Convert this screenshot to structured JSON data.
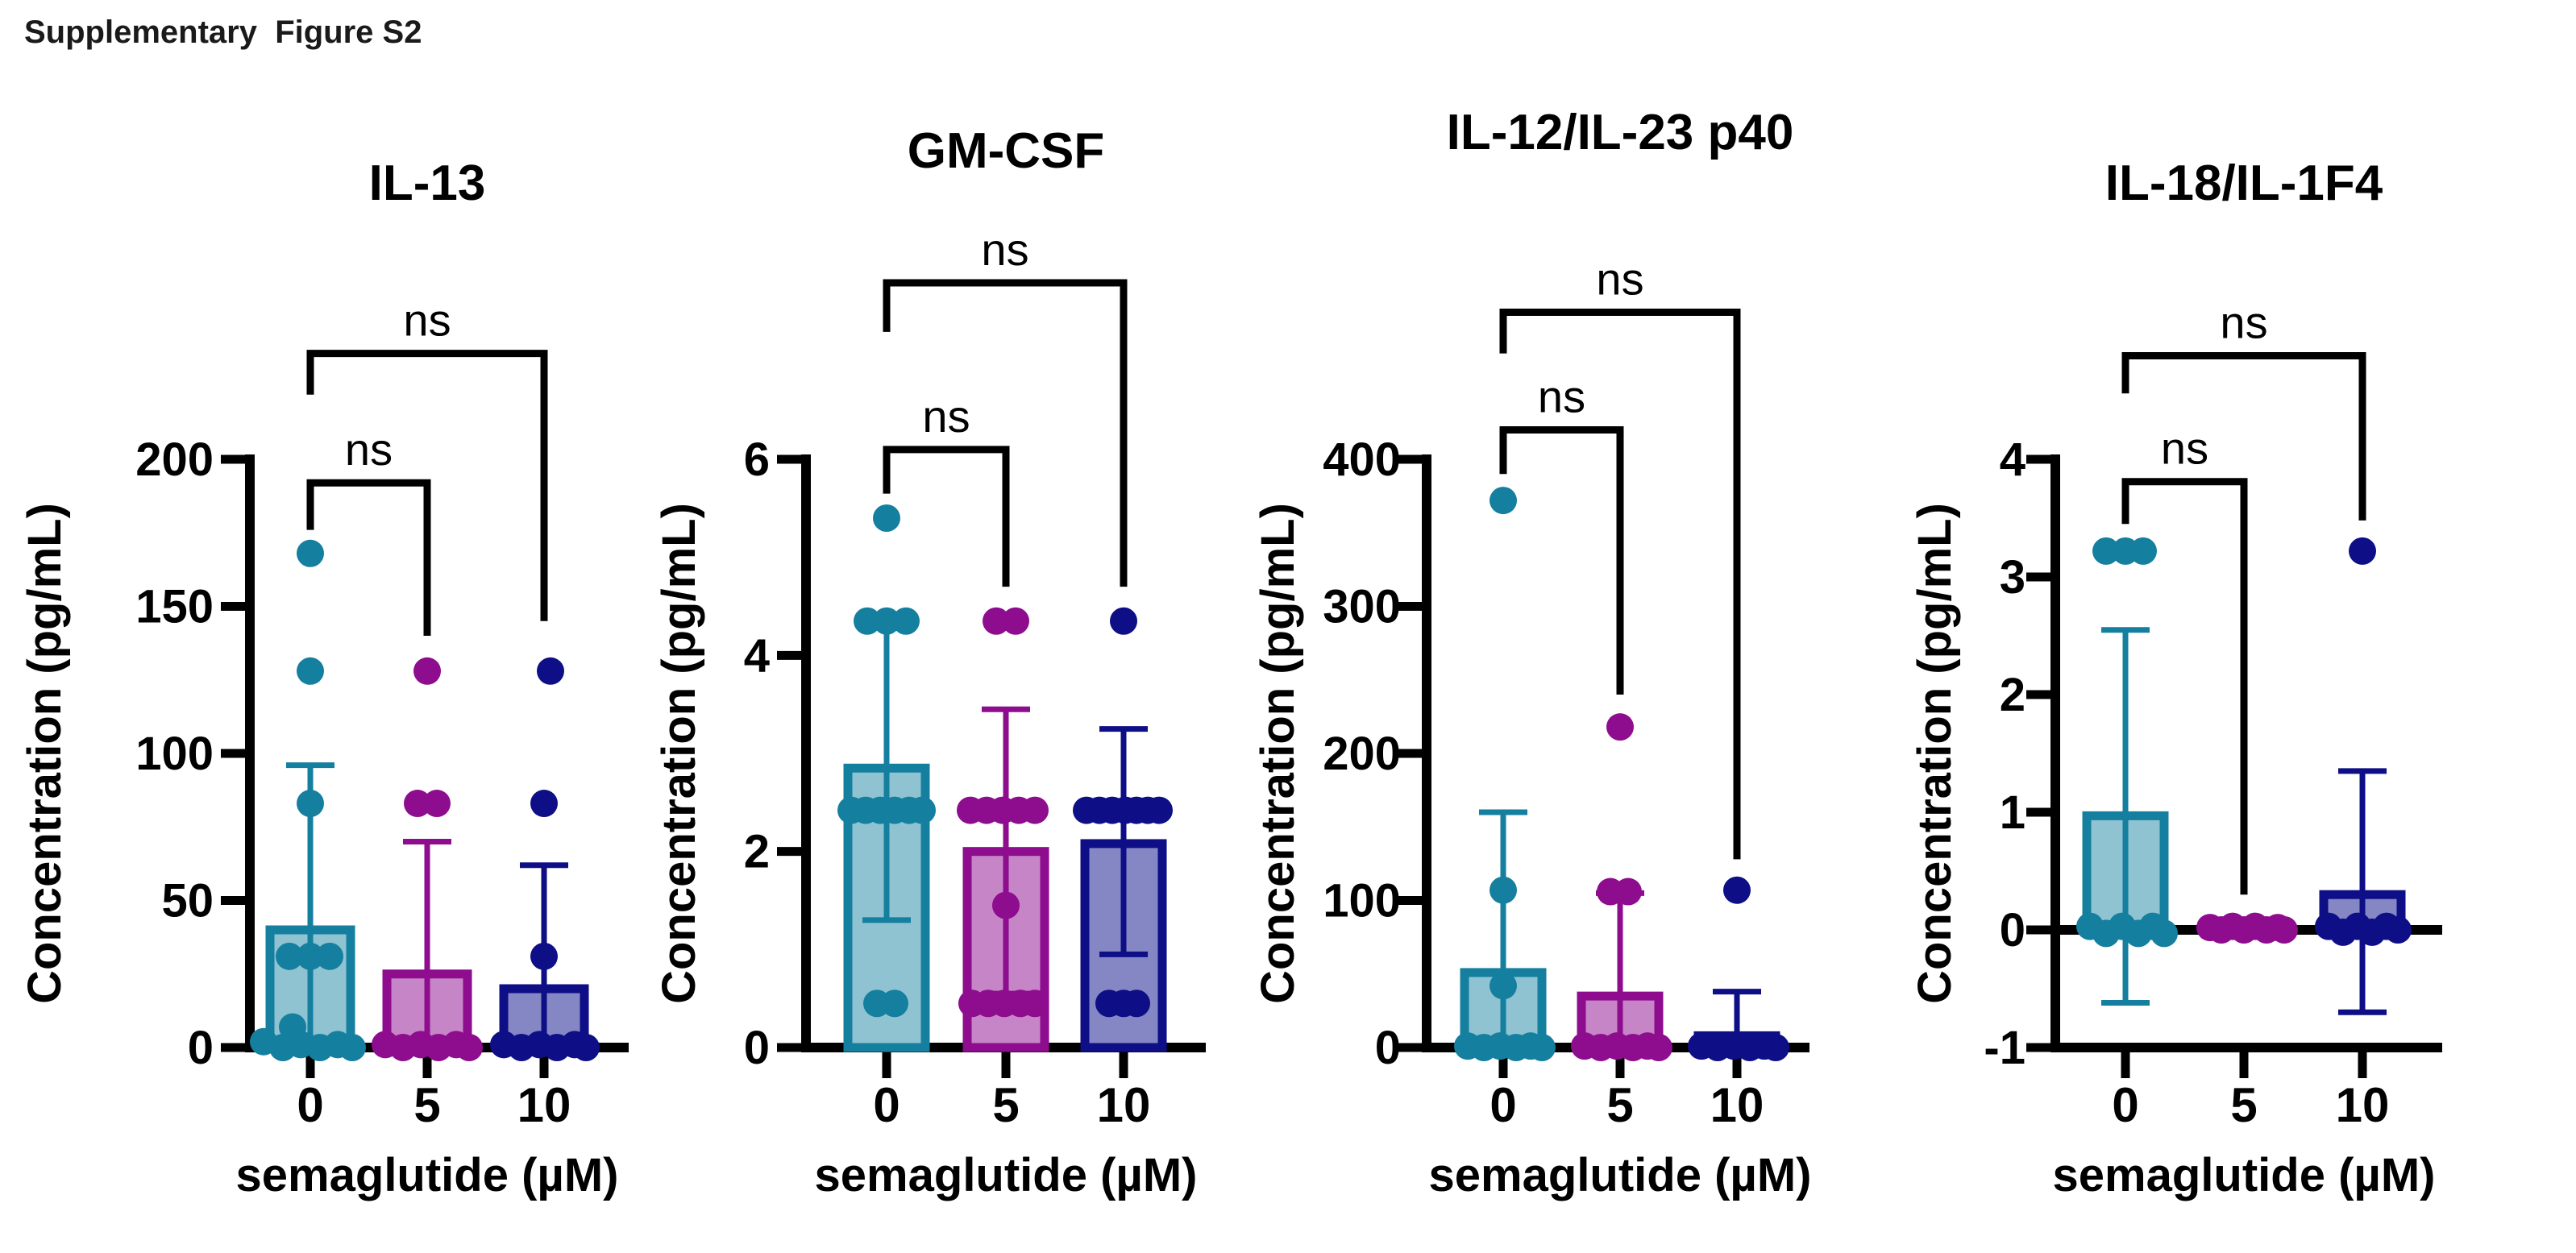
{
  "figure_label": "Supplementary  Figure S2",
  "sig_label": "ns",
  "axes": {
    "x_label": "semaglutide (µM)",
    "y_label": "Concentration (pg/mL)",
    "categories": [
      "0",
      "5",
      "10"
    ]
  },
  "colors": {
    "teal": {
      "stroke": "#147F9E",
      "fill": "#8FC3D1"
    },
    "magenta": {
      "stroke": "#8E0C8E",
      "fill": "#C685C6"
    },
    "navy": {
      "stroke": "#0E0E87",
      "fill": "#8487C3"
    }
  },
  "chart_data": [
    {
      "type": "bar",
      "title": "IL-13",
      "xlabel": "semaglutide (µM)",
      "ylabel": "Concentration (pg/mL)",
      "ylim": [
        0,
        200
      ],
      "yticks": [
        0,
        50,
        100,
        150,
        200
      ],
      "categories": [
        "0",
        "5",
        "10"
      ],
      "groups": [
        {
          "category": "0",
          "color": "teal",
          "bar": 40,
          "err": {
            "lo": 0,
            "hi": 96,
            "cap_lo": false,
            "cap_hi": true
          },
          "points": [
            [
              168,
              0
            ],
            [
              128,
              0
            ],
            [
              83,
              0
            ],
            [
              31,
              -26
            ],
            [
              31,
              0
            ],
            [
              31,
              24
            ],
            [
              7,
              -22
            ],
            [
              2,
              -58
            ],
            [
              0,
              -34
            ],
            [
              1,
              -12
            ],
            [
              0,
              12
            ],
            [
              1,
              34
            ],
            [
              0,
              52
            ]
          ]
        },
        {
          "category": "5",
          "color": "magenta",
          "bar": 25,
          "err": {
            "lo": 0,
            "hi": 70,
            "cap_lo": false,
            "cap_hi": true
          },
          "points": [
            [
              128,
              0
            ],
            [
              83,
              -12
            ],
            [
              83,
              12
            ],
            [
              1,
              -52
            ],
            [
              0,
              -30
            ],
            [
              1,
              -8
            ],
            [
              0,
              14
            ],
            [
              1,
              36
            ],
            [
              0,
              52
            ]
          ]
        },
        {
          "category": "10",
          "color": "navy",
          "bar": 20,
          "err": {
            "lo": 0,
            "hi": 62,
            "cap_lo": false,
            "cap_hi": true
          },
          "points": [
            [
              128,
              8
            ],
            [
              83,
              0
            ],
            [
              31,
              0
            ],
            [
              1,
              -50
            ],
            [
              0,
              -28
            ],
            [
              1,
              -6
            ],
            [
              0,
              16
            ],
            [
              1,
              38
            ],
            [
              0,
              52
            ]
          ]
        }
      ],
      "brackets": [
        {
          "label": "ns",
          "from": 0,
          "to": 1,
          "top": 192,
          "left_end": 176,
          "right_end": 140
        },
        {
          "label": "ns",
          "from": 0,
          "to": 2,
          "top": 236,
          "left_end": 222,
          "right_end": 145
        }
      ]
    },
    {
      "type": "bar",
      "title": "GM-CSF",
      "xlabel": "semaglutide (µM)",
      "ylabel": "Concentration (pg/mL)",
      "ylim": [
        0,
        6
      ],
      "yticks": [
        0,
        2,
        4,
        6
      ],
      "categories": [
        "0",
        "5",
        "10"
      ],
      "groups": [
        {
          "category": "0",
          "color": "teal",
          "bar": 2.85,
          "err": {
            "lo": 1.3,
            "hi": 4.4,
            "cap_lo": true,
            "cap_hi": true
          },
          "points": [
            [
              5.4,
              0
            ],
            [
              4.35,
              -24
            ],
            [
              4.35,
              0
            ],
            [
              4.35,
              24
            ],
            [
              2.42,
              -44
            ],
            [
              2.42,
              -26
            ],
            [
              2.42,
              -8
            ],
            [
              2.42,
              10
            ],
            [
              2.42,
              28
            ],
            [
              2.42,
              44
            ],
            [
              0.45,
              -12
            ],
            [
              0.45,
              10
            ]
          ]
        },
        {
          "category": "5",
          "color": "magenta",
          "bar": 2.0,
          "err": {
            "lo": 0.55,
            "hi": 3.45,
            "cap_lo": true,
            "cap_hi": true
          },
          "points": [
            [
              4.35,
              -12
            ],
            [
              4.35,
              12
            ],
            [
              2.42,
              -44
            ],
            [
              2.42,
              -24
            ],
            [
              2.42,
              -4
            ],
            [
              2.42,
              16
            ],
            [
              2.42,
              36
            ],
            [
              1.45,
              0
            ],
            [
              0.45,
              -42
            ],
            [
              0.45,
              -22
            ],
            [
              0.45,
              -2
            ],
            [
              0.45,
              18
            ],
            [
              0.45,
              36
            ]
          ]
        },
        {
          "category": "10",
          "color": "navy",
          "bar": 2.08,
          "err": {
            "lo": 0.95,
            "hi": 3.25,
            "cap_lo": true,
            "cap_hi": true
          },
          "points": [
            [
              4.35,
              0
            ],
            [
              2.42,
              -46
            ],
            [
              2.42,
              -30
            ],
            [
              2.42,
              -14
            ],
            [
              2.42,
              2
            ],
            [
              2.42,
              16
            ],
            [
              2.42,
              30
            ],
            [
              2.42,
              44
            ],
            [
              0.45,
              -18
            ],
            [
              0.45,
              0
            ],
            [
              0.45,
              16
            ]
          ]
        }
      ],
      "brackets": [
        {
          "label": "ns",
          "from": 0,
          "to": 1,
          "top": 6.1,
          "left_end": 5.65,
          "right_end": 4.7
        },
        {
          "label": "ns",
          "from": 0,
          "to": 2,
          "top": 7.8,
          "left_end": 7.3,
          "right_end": 4.7
        }
      ]
    },
    {
      "type": "bar",
      "title": "IL-12/IL-23 p40",
      "xlabel": "semaglutide (µM)",
      "ylabel": "Concentration (pg/mL)",
      "ylim": [
        0,
        400
      ],
      "yticks": [
        0,
        100,
        200,
        300,
        400
      ],
      "categories": [
        "0",
        "5",
        "10"
      ],
      "groups": [
        {
          "category": "0",
          "color": "teal",
          "bar": 51,
          "err": {
            "lo": 0,
            "hi": 160,
            "cap_lo": false,
            "cap_hi": true
          },
          "points": [
            [
              372,
              0
            ],
            [
              107,
              0
            ],
            [
              42,
              0
            ],
            [
              1,
              -44
            ],
            [
              0,
              -24
            ],
            [
              1,
              -4
            ],
            [
              0,
              16
            ],
            [
              1,
              34
            ],
            [
              0,
              48
            ]
          ]
        },
        {
          "category": "5",
          "color": "magenta",
          "bar": 35,
          "err": {
            "lo": 0,
            "hi": 105,
            "cap_lo": false,
            "cap_hi": true
          },
          "points": [
            [
              218,
              0
            ],
            [
              106,
              -12
            ],
            [
              106,
              10
            ],
            [
              1,
              -44
            ],
            [
              0,
              -24
            ],
            [
              1,
              -4
            ],
            [
              0,
              16
            ],
            [
              1,
              34
            ],
            [
              0,
              48
            ]
          ]
        },
        {
          "category": "10",
          "color": "navy",
          "bar": 8,
          "err": {
            "lo": 0,
            "hi": 38,
            "cap_lo": false,
            "cap_hi": true
          },
          "points": [
            [
              107,
              0
            ],
            [
              1,
              -44
            ],
            [
              0,
              -24
            ],
            [
              1,
              -4
            ],
            [
              0,
              16
            ],
            [
              1,
              34
            ],
            [
              0,
              48
            ]
          ]
        }
      ],
      "brackets": [
        {
          "label": "ns",
          "from": 0,
          "to": 1,
          "top": 420,
          "left_end": 390,
          "right_end": 240
        },
        {
          "label": "ns",
          "from": 0,
          "to": 2,
          "top": 500,
          "left_end": 472,
          "right_end": 128
        }
      ]
    },
    {
      "type": "bar",
      "title": "IL-18/IL-1F4",
      "xlabel": "semaglutide (µM)",
      "ylabel": "Concentration (pg/mL)",
      "ylim": [
        -1,
        4
      ],
      "yticks": [
        -1,
        0,
        1,
        2,
        3,
        4
      ],
      "categories": [
        "0",
        "5",
        "10"
      ],
      "groups": [
        {
          "category": "0",
          "color": "teal",
          "bar": 0.97,
          "err": {
            "lo": -0.62,
            "hi": 2.55,
            "cap_lo": true,
            "cap_hi": true
          },
          "points": [
            [
              3.22,
              -24
            ],
            [
              3.22,
              0
            ],
            [
              3.22,
              22
            ],
            [
              0.03,
              -44
            ],
            [
              -0.03,
              -24
            ],
            [
              0.03,
              -4
            ],
            [
              -0.03,
              16
            ],
            [
              0.03,
              34
            ],
            [
              -0.03,
              48
            ]
          ]
        },
        {
          "category": "5",
          "color": "magenta",
          "bar": 0.04,
          "err": null,
          "points": [
            [
              0.02,
              -42
            ],
            [
              0,
              -28
            ],
            [
              0.03,
              -14
            ],
            [
              0,
              0
            ],
            [
              0.03,
              14
            ],
            [
              0,
              28
            ],
            [
              0.02,
              42
            ],
            [
              0,
              50
            ]
          ]
        },
        {
          "category": "10",
          "color": "navy",
          "bar": 0.3,
          "err": {
            "lo": -0.7,
            "hi": 1.35,
            "cap_lo": true,
            "cap_hi": true
          },
          "points": [
            [
              3.22,
              0
            ],
            [
              0.03,
              -42
            ],
            [
              -0.02,
              -24
            ],
            [
              0.03,
              -6
            ],
            [
              -0.02,
              12
            ],
            [
              0.03,
              30
            ],
            [
              0,
              44
            ]
          ]
        }
      ],
      "brackets": [
        {
          "label": "ns",
          "from": 0,
          "to": 1,
          "top": 3.81,
          "left_end": 3.45,
          "right_end": 0.3
        },
        {
          "label": "ns",
          "from": 0,
          "to": 2,
          "top": 4.88,
          "left_end": 4.56,
          "right_end": 3.48
        }
      ]
    }
  ]
}
